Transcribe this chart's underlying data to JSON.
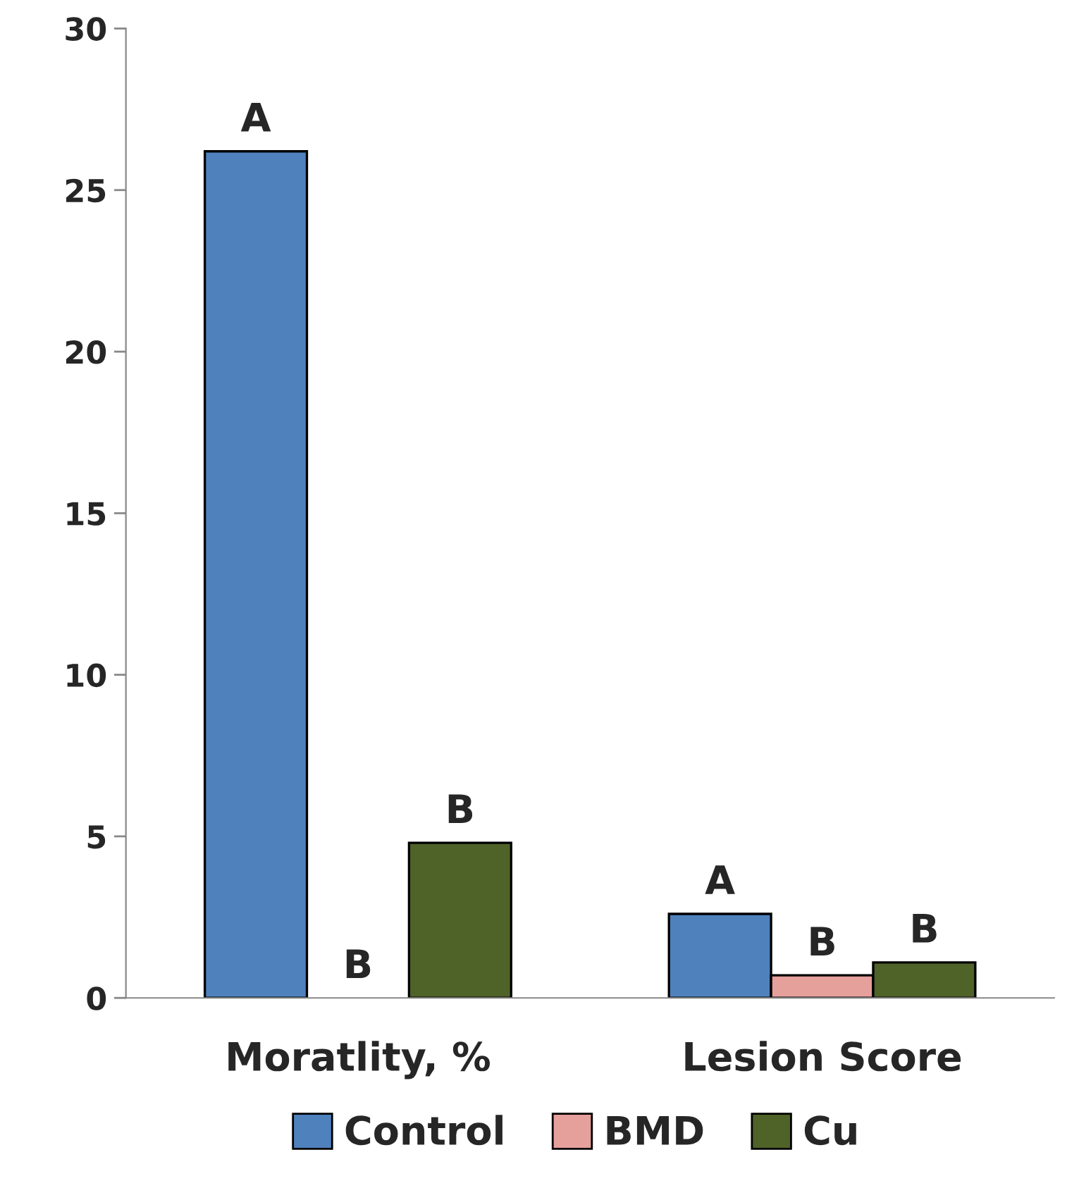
{
  "chart_data": {
    "type": "bar",
    "categories": [
      "Moratlity, %",
      "Lesion Score"
    ],
    "series": [
      {
        "name": "Control",
        "color": "#4f81bd",
        "values": [
          26.2,
          2.6
        ],
        "value_labels": [
          "A",
          "A"
        ]
      },
      {
        "name": "BMD",
        "color": "#e6a09c",
        "values": [
          0,
          0.7
        ],
        "value_labels": [
          "B",
          "B"
        ]
      },
      {
        "name": "Cu",
        "color": "#4f6228",
        "values": [
          4.8,
          1.1
        ],
        "value_labels": [
          "B",
          "B"
        ]
      }
    ],
    "ylim": [
      0,
      30
    ],
    "yticks": [
      0,
      5,
      10,
      15,
      20,
      25,
      30
    ],
    "grid": false,
    "legend": "bottom"
  }
}
